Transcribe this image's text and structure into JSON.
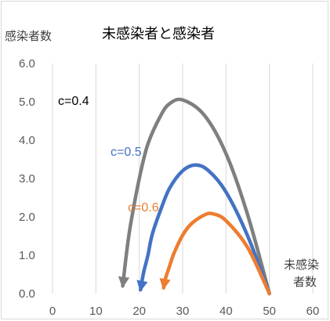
{
  "chart_data": {
    "type": "line",
    "title": "未感染者と感染者",
    "ylabel": "感染者数",
    "xlabel_lines": [
      "未感染",
      "者数"
    ],
    "xlim": [
      0,
      60
    ],
    "ylim": [
      0,
      6
    ],
    "x_ticks": [
      "0",
      "10",
      "20",
      "30",
      "40",
      "50",
      "60"
    ],
    "y_ticks": [
      "0.0",
      "1.0",
      "2.0",
      "3.0",
      "4.0",
      "5.0",
      "6.0"
    ],
    "grid": "vertical",
    "series": [
      {
        "name": "c=0.4",
        "color": "#7f7f7f",
        "label_color": "#000000",
        "points": [
          [
            50,
            0
          ],
          [
            45,
            2.05
          ],
          [
            40,
            3.65
          ],
          [
            35,
            4.65
          ],
          [
            30,
            5.05
          ],
          [
            27,
            4.95
          ],
          [
            25,
            4.65
          ],
          [
            22,
            3.9
          ],
          [
            20,
            3.0
          ],
          [
            18,
            1.8
          ],
          [
            17,
            1.0
          ],
          [
            16.2,
            0.2
          ]
        ]
      },
      {
        "name": "c=0.5",
        "color": "#4472c4",
        "label_color": "#4472c4",
        "points": [
          [
            50,
            0
          ],
          [
            45,
            1.5
          ],
          [
            40,
            2.65
          ],
          [
            36,
            3.2
          ],
          [
            33,
            3.35
          ],
          [
            30,
            3.2
          ],
          [
            27,
            2.75
          ],
          [
            25,
            2.2
          ],
          [
            23,
            1.55
          ],
          [
            22,
            1.0
          ],
          [
            21,
            0.55
          ],
          [
            20.3,
            0.1
          ]
        ]
      },
      {
        "name": "c=0.6",
        "color": "#ed7d31",
        "label_color": "#ed7d31",
        "points": [
          [
            50,
            0
          ],
          [
            45,
            1.2
          ],
          [
            40,
            1.9
          ],
          [
            37,
            2.08
          ],
          [
            35,
            2.05
          ],
          [
            32,
            1.82
          ],
          [
            30,
            1.52
          ],
          [
            28,
            1.05
          ],
          [
            27,
            0.72
          ],
          [
            26,
            0.38
          ],
          [
            25.6,
            0.15
          ]
        ]
      }
    ]
  }
}
